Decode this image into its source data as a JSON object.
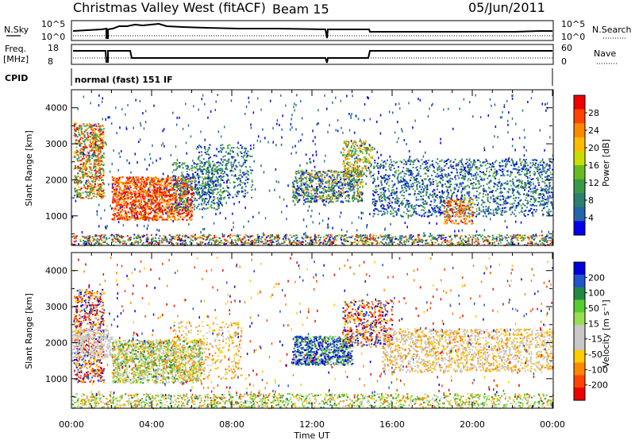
{
  "header": {
    "title": "Christmas Valley West (fitACF)",
    "beam": "Beam 15",
    "date": "05/Jun/2011"
  },
  "top_panels": {
    "nsky_label": "N.Sky",
    "nsky_ticks": [
      "10^5",
      "10^0"
    ],
    "nsearch_label": "N.Search",
    "freq_label_1": "Freq.",
    "freq_label_2": "[MHz]",
    "freq_ticks": [
      "18",
      "8"
    ],
    "nave_label": "Nave",
    "nave_ticks": [
      "60",
      "0"
    ],
    "cpid_label": "CPID",
    "cpid_text": "normal (fast) 151 IF"
  },
  "chart_data": [
    {
      "type": "heatmap",
      "panel": "power",
      "ylabel": "Slant Range [km]",
      "xlabel": "",
      "xlim": [
        "00:00",
        "00:00"
      ],
      "x_ticks": [
        "00:00",
        "04:00",
        "08:00",
        "12:00",
        "16:00",
        "20:00",
        "00:00"
      ],
      "ylim": [
        180,
        4500
      ],
      "y_ticks": [
        1000,
        2000,
        3000,
        4000
      ],
      "colorbar": {
        "label": "Power [dB]",
        "ticks": [
          28,
          24,
          20,
          16,
          12,
          8,
          4
        ],
        "colors": [
          "#ee0000",
          "#ff4400",
          "#ff8800",
          "#ffbb00",
          "#c8dd00",
          "#66bb22",
          "#3a9a4a",
          "#2e7f6f",
          "#2266a8",
          "#0000ee"
        ]
      }
    },
    {
      "type": "heatmap",
      "panel": "velocity",
      "ylabel": "Slant Range [km]",
      "xlabel": "Time UT",
      "xlim": [
        "00:00",
        "00:00"
      ],
      "x_ticks": [
        "00:00",
        "04:00",
        "08:00",
        "12:00",
        "16:00",
        "20:00",
        "00:00"
      ],
      "ylim": [
        180,
        4500
      ],
      "y_ticks": [
        1000,
        2000,
        3000,
        4000
      ],
      "colorbar": {
        "label": "Velocity [m s⁻¹]",
        "ticks": [
          "200",
          "100",
          "50",
          "15",
          "-15",
          "-50",
          "-100",
          "-200"
        ],
        "colors": [
          "#0000dd",
          "#2255cc",
          "#228844",
          "#55cc33",
          "#99dd55",
          "#c8c8c8",
          "#c8c8c8",
          "#ffcc00",
          "#ff8800",
          "#ff4400",
          "#ee0000"
        ]
      },
      "ground_scatter_color": "#c8c8c8"
    }
  ]
}
